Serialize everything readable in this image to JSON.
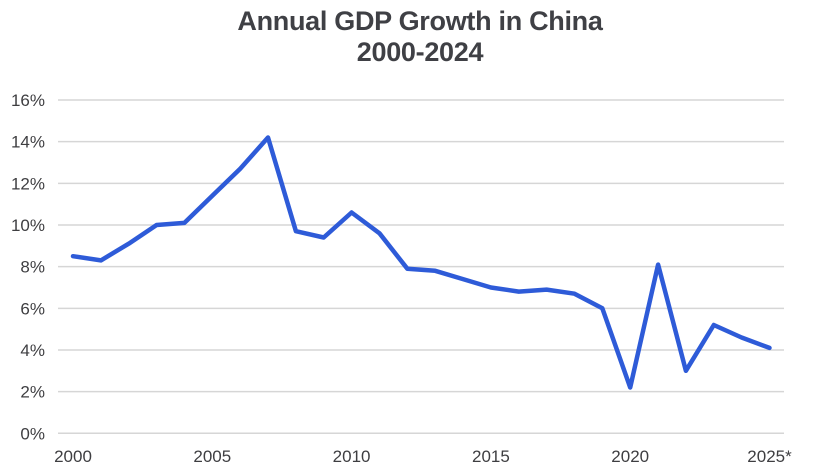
{
  "header": {
    "line1": "Annual GDP Growth in China",
    "line2": "2000-2024"
  },
  "colors": {
    "line": "#2e5bd8",
    "grid": "#d6d6d6",
    "text": "#3e3e41",
    "title": "#3f4045",
    "background": "#ffffff"
  },
  "chart_data": {
    "type": "line",
    "title": "Annual GDP Growth in China 2000-2024",
    "x": [
      2000,
      2001,
      2002,
      2003,
      2004,
      2005,
      2006,
      2007,
      2008,
      2009,
      2010,
      2011,
      2012,
      2013,
      2014,
      2015,
      2016,
      2017,
      2018,
      2019,
      2020,
      2021,
      2022,
      2023,
      2024,
      2025
    ],
    "series": [
      {
        "name": "Annual GDP growth (%)",
        "values": [
          8.5,
          8.3,
          9.1,
          10.0,
          10.1,
          11.4,
          12.7,
          14.2,
          9.7,
          9.4,
          10.6,
          9.6,
          7.9,
          7.8,
          7.4,
          7.0,
          6.8,
          6.9,
          6.7,
          6.0,
          2.2,
          8.1,
          3.0,
          5.2,
          4.6,
          4.1
        ]
      }
    ],
    "x_tick_labels": [
      "2000",
      "2005",
      "2010",
      "2015",
      "2020",
      "2025*"
    ],
    "x_tick_values": [
      2000,
      2005,
      2010,
      2015,
      2020,
      2025
    ],
    "y_tick_labels": [
      "0%",
      "2%",
      "4%",
      "6%",
      "8%",
      "10%",
      "12%",
      "14%",
      "16%"
    ],
    "y_tick_values": [
      0,
      2,
      4,
      6,
      8,
      10,
      12,
      14,
      16
    ],
    "xlim": [
      2000,
      2025
    ],
    "ylim": [
      0,
      16
    ],
    "grid": "horizontal",
    "legend": "none"
  }
}
